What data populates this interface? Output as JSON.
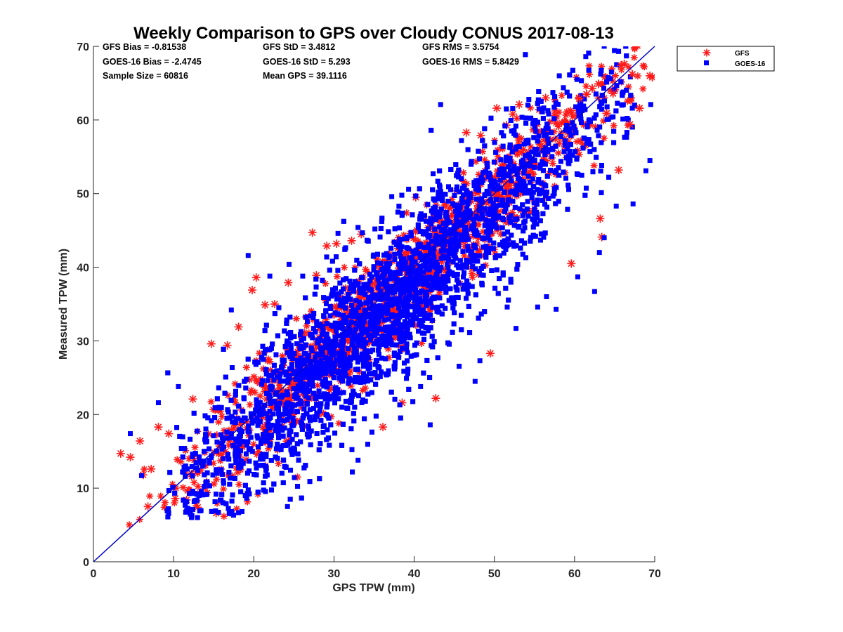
{
  "chart_data": {
    "type": "scatter",
    "title": "Weekly Comparison to GPS over Cloudy CONUS 2017-08-13",
    "xlabel": "GPS TPW (mm)",
    "ylabel": "Measured TPW (mm)",
    "xlim": [
      0,
      70
    ],
    "ylim": [
      0,
      70
    ],
    "xticks": [
      "0",
      "10",
      "20",
      "30",
      "40",
      "50",
      "60",
      "70"
    ],
    "yticks": [
      "0",
      "10",
      "20",
      "30",
      "40",
      "50",
      "60",
      "70"
    ],
    "grid": false,
    "legend_position": "outside-top-right",
    "reference_line": {
      "x": [
        0,
        70
      ],
      "y": [
        0,
        70
      ],
      "color": "#0000cc"
    },
    "statistics": [
      [
        "GFS Bias = -0.81538",
        "GFS StD = 3.4812",
        "GFS RMS = 3.5754"
      ],
      [
        "GOES-16 Bias = -2.4745",
        "GOES-16 StD = 5.293",
        "GOES-16 RMS = 5.8429"
      ],
      [
        "Sample Size = 60816",
        "Mean GPS = 39.1116",
        ""
      ]
    ],
    "series": [
      {
        "name": "GFS",
        "marker": "asterisk",
        "color": "#ff1a1a",
        "distribution": {
          "x_range": [
            3.4,
            70.0
          ],
          "y_center_offset": -0.8,
          "y_spread": 3.5
        },
        "points": [
          [
            3.4,
            14.7
          ],
          [
            4.6,
            14.2
          ],
          [
            5.8,
            16.4
          ],
          [
            6.2,
            11.8
          ],
          [
            6.8,
            7.5
          ],
          [
            7.2,
            12.6
          ],
          [
            8.1,
            18.3
          ],
          [
            9.4,
            17.4
          ],
          [
            10.2,
            8.6
          ],
          [
            11.6,
            8.4
          ],
          [
            13.0,
            7.4
          ],
          [
            15.3,
            6.6
          ],
          [
            12.4,
            22.1
          ],
          [
            14.7,
            29.6
          ],
          [
            16.7,
            29.4
          ],
          [
            18.1,
            31.9
          ],
          [
            19.8,
            36.9
          ],
          [
            20.3,
            38.6
          ],
          [
            21.4,
            34.9
          ],
          [
            22.6,
            35.0
          ],
          [
            24.3,
            37.9
          ],
          [
            27.3,
            44.7
          ],
          [
            27.8,
            38.9
          ],
          [
            29.1,
            42.9
          ],
          [
            30.3,
            43.2
          ],
          [
            32.2,
            43.6
          ],
          [
            33.4,
            44.5
          ],
          [
            36.1,
            18.3
          ],
          [
            38.5,
            21.6
          ],
          [
            40.2,
            49.5
          ],
          [
            42.7,
            22.2
          ],
          [
            46.5,
            58.3
          ],
          [
            48.3,
            57.9
          ],
          [
            49.5,
            28.3
          ],
          [
            50.3,
            61.6
          ],
          [
            51.5,
            59.3
          ],
          [
            52.3,
            60.8
          ],
          [
            53.1,
            62.1
          ],
          [
            55.6,
            61.4
          ],
          [
            56.4,
            63.0
          ],
          [
            59.6,
            40.5
          ],
          [
            60.6,
            62.9
          ],
          [
            61.5,
            63.5
          ],
          [
            62.2,
            64.3
          ],
          [
            63.0,
            64.9
          ],
          [
            63.2,
            46.6
          ],
          [
            63.4,
            44.1
          ],
          [
            64.0,
            60.9
          ],
          [
            64.8,
            63.6
          ],
          [
            65.5,
            53.2
          ],
          [
            65.8,
            67.4
          ],
          [
            66.2,
            67.6
          ],
          [
            66.9,
            59.4
          ],
          [
            67.2,
            66.2
          ],
          [
            68.1,
            61.6
          ],
          [
            69.4,
            66.0
          ],
          [
            69.7,
            65.8
          ]
        ]
      },
      {
        "name": "GOES-16",
        "marker": "square",
        "color": "#0000ff",
        "distribution": {
          "x_range": [
            4.0,
            69.6
          ],
          "y_center_offset": -2.5,
          "y_spread": 5.3
        },
        "points": [
          [
            4.6,
            17.4
          ],
          [
            6.0,
            11.7
          ],
          [
            8.1,
            21.6
          ],
          [
            9.2,
            6.9
          ],
          [
            10.6,
            23.8
          ],
          [
            11.9,
            7.0
          ],
          [
            13.0,
            12.4
          ],
          [
            17.2,
            34.2
          ],
          [
            19.3,
            41.6
          ],
          [
            22.0,
            38.8
          ],
          [
            24.4,
            40.4
          ],
          [
            24.2,
            7.5
          ],
          [
            26.1,
            38.8
          ],
          [
            28.7,
            35.9
          ],
          [
            30.5,
            44.6
          ],
          [
            32.2,
            22.6
          ],
          [
            33.0,
            13.8
          ],
          [
            35.1,
            45.2
          ],
          [
            37.2,
            49.6
          ],
          [
            38.2,
            21.3
          ],
          [
            39.3,
            50.6
          ],
          [
            40.8,
            23.8
          ],
          [
            42.0,
            18.6
          ],
          [
            43.0,
            50.2
          ],
          [
            43.3,
            62.1
          ],
          [
            45.9,
            57.2
          ],
          [
            47.6,
            24.5
          ],
          [
            48.2,
            27.3
          ],
          [
            49.3,
            42.0
          ],
          [
            51.6,
            34.6
          ],
          [
            52.7,
            31.7
          ],
          [
            54.3,
            62.8
          ],
          [
            55.4,
            34.6
          ],
          [
            56.5,
            36.0
          ],
          [
            57.7,
            34.3
          ],
          [
            58.1,
            66.0
          ],
          [
            60.3,
            65.5
          ],
          [
            60.4,
            38.7
          ],
          [
            61.4,
            68.6
          ],
          [
            62.5,
            36.7
          ],
          [
            63.1,
            42.0
          ],
          [
            63.7,
            44.0
          ],
          [
            64.6,
            66.5
          ],
          [
            65.2,
            48.3
          ],
          [
            66.7,
            60.0
          ],
          [
            67.3,
            48.6
          ],
          [
            68.9,
            53.1
          ],
          [
            69.4,
            54.5
          ],
          [
            69.5,
            62.1
          ]
        ]
      }
    ]
  }
}
